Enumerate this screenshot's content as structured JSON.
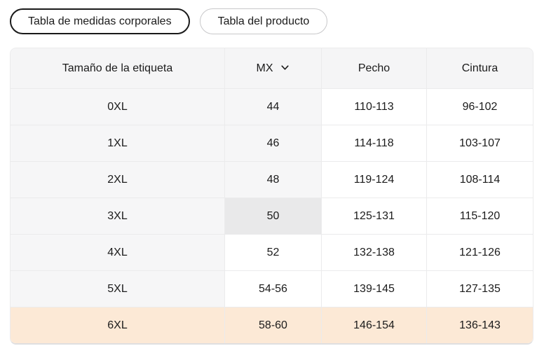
{
  "tabs": [
    {
      "label": "Tabla de medidas corporales",
      "active": true
    },
    {
      "label": "Tabla del producto",
      "active": false
    }
  ],
  "table": {
    "columns": [
      {
        "key": "label",
        "header": "Tamaño de la etiqueta"
      },
      {
        "key": "mx",
        "header": "MX",
        "dropdown": true,
        "dropdown_icon": "chevron-down-icon"
      },
      {
        "key": "pecho",
        "header": "Pecho"
      },
      {
        "key": "cintura",
        "header": "Cintura"
      }
    ],
    "rows": [
      {
        "label": "0XL",
        "mx": "44",
        "pecho": "110-113",
        "cintura": "96-102",
        "mx_shaded": true,
        "mx_selected": false,
        "row_highlight": false
      },
      {
        "label": "1XL",
        "mx": "46",
        "pecho": "114-118",
        "cintura": "103-107",
        "mx_shaded": true,
        "mx_selected": false,
        "row_highlight": false
      },
      {
        "label": "2XL",
        "mx": "48",
        "pecho": "119-124",
        "cintura": "108-114",
        "mx_shaded": true,
        "mx_selected": false,
        "row_highlight": false
      },
      {
        "label": "3XL",
        "mx": "50",
        "pecho": "125-131",
        "cintura": "115-120",
        "mx_shaded": false,
        "mx_selected": true,
        "row_highlight": false
      },
      {
        "label": "4XL",
        "mx": "52",
        "pecho": "132-138",
        "cintura": "121-126",
        "mx_shaded": false,
        "mx_selected": false,
        "row_highlight": false
      },
      {
        "label": "5XL",
        "mx": "54-56",
        "pecho": "139-145",
        "cintura": "127-135",
        "mx_shaded": false,
        "mx_selected": false,
        "row_highlight": false
      },
      {
        "label": "6XL",
        "mx": "58-60",
        "pecho": "146-154",
        "cintura": "136-143",
        "mx_shaded": false,
        "mx_selected": false,
        "row_highlight": true
      }
    ]
  },
  "colors": {
    "text": "#1b1b1b",
    "header_gray": "#f5f5f6",
    "cell_gray": "#f6f6f7",
    "selected_cell_gray": "#e9e9ea",
    "highlight_peach": "#fce9d6",
    "cell_border": "#ebebec",
    "table_outer_border": "#dfdfe1",
    "tab_active_border": "#1a1a1a",
    "tab_inactive_border": "#c8c8ca"
  }
}
